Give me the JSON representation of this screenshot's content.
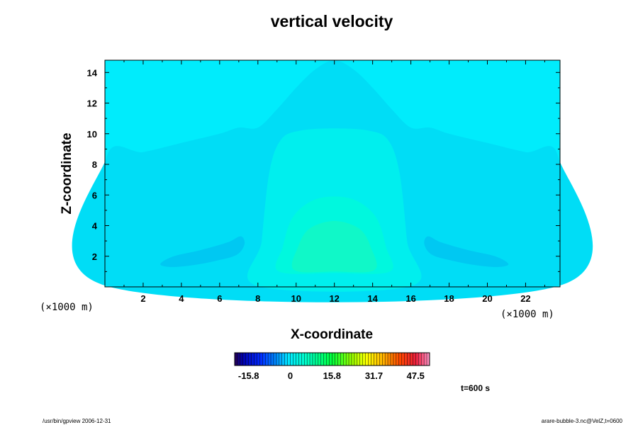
{
  "chart_data": {
    "type": "heatmap",
    "title": "vertical velocity",
    "xlabel": "X-coordinate",
    "ylabel": "Z-coordinate",
    "x_unit": "(×1000 m)",
    "y_unit": "(×1000 m)",
    "xlim": [
      0,
      23.8
    ],
    "ylim": [
      0,
      14.8
    ],
    "x_ticks": [
      2,
      4,
      6,
      8,
      10,
      12,
      14,
      16,
      18,
      20,
      22
    ],
    "y_ticks": [
      2,
      4,
      6,
      8,
      10,
      12,
      14
    ],
    "field": {
      "background_level": 0,
      "regions": [
        {
          "name": "upper-weak-positive",
          "level": 1,
          "color": "#00ddf6",
          "outline": [
            [
              0.1,
              8.5
            ],
            [
              2,
              8.8
            ],
            [
              4,
              9.4
            ],
            [
              6,
              10
            ],
            [
              7,
              10.4
            ],
            [
              8,
              10.4
            ],
            [
              9,
              11.6
            ],
            [
              10,
              13
            ],
            [
              11,
              14.2
            ],
            [
              12,
              14.8
            ],
            [
              13,
              14.2
            ],
            [
              14,
              13
            ],
            [
              15,
              11.6
            ],
            [
              16,
              10.4
            ],
            [
              17,
              10.4
            ],
            [
              18,
              10
            ],
            [
              20,
              9.4
            ],
            [
              22,
              8.8
            ],
            [
              23.7,
              8.5
            ],
            [
              23.7,
              0.05
            ],
            [
              0.1,
              0.05
            ]
          ]
        },
        {
          "name": "core-outer",
          "level": 2,
          "color": "#00efee",
          "outline": [
            [
              8.0,
              0.05
            ],
            [
              8.2,
              3
            ],
            [
              8.6,
              7.5
            ],
            [
              9.2,
              9.6
            ],
            [
              10.2,
              10.2
            ],
            [
              12,
              10.35
            ],
            [
              13.8,
              10.2
            ],
            [
              14.8,
              9.6
            ],
            [
              15.4,
              7.5
            ],
            [
              15.8,
              3
            ],
            [
              16,
              0.05
            ]
          ]
        },
        {
          "name": "core-mid",
          "level": 3,
          "color": "#00f8de",
          "outline": [
            [
              9.1,
              1.0
            ],
            [
              9.3,
              2.6
            ],
            [
              9.8,
              4.5
            ],
            [
              10.8,
              5.6
            ],
            [
              12,
              5.9
            ],
            [
              13.2,
              5.6
            ],
            [
              14.2,
              4.5
            ],
            [
              14.7,
              2.6
            ],
            [
              14.9,
              1.0
            ],
            [
              12,
              0.9
            ]
          ]
        },
        {
          "name": "core-inner",
          "level": 4,
          "color": "#10f8c8",
          "outline": [
            [
              9.9,
              1.1
            ],
            [
              10.1,
              2.6
            ],
            [
              10.7,
              3.8
            ],
            [
              12,
              4.3
            ],
            [
              13.3,
              3.8
            ],
            [
              13.9,
              2.6
            ],
            [
              14.1,
              1.1
            ],
            [
              12,
              1.0
            ]
          ]
        },
        {
          "name": "lobe-left",
          "level": -1,
          "color": "#00c8f2",
          "outline": [
            [
              2.9,
              1.5
            ],
            [
              3.6,
              2.0
            ],
            [
              5.0,
              2.4
            ],
            [
              6.4,
              2.9
            ],
            [
              7.1,
              3.3
            ],
            [
              7.3,
              2.8
            ],
            [
              6.9,
              2.1
            ],
            [
              5.8,
              1.7
            ],
            [
              4.5,
              1.4
            ],
            [
              3.4,
              1.3
            ]
          ]
        },
        {
          "name": "lobe-right",
          "level": -1,
          "color": "#00c8f2",
          "outline": [
            [
              21.1,
              1.5
            ],
            [
              20.4,
              2.0
            ],
            [
              19,
              2.4
            ],
            [
              17.6,
              2.9
            ],
            [
              16.9,
              3.3
            ],
            [
              16.7,
              2.8
            ],
            [
              17.1,
              2.1
            ],
            [
              18.2,
              1.7
            ],
            [
              19.5,
              1.4
            ],
            [
              20.6,
              1.3
            ]
          ]
        }
      ],
      "colors": {
        "background": "#00ecfc",
        "level-1": "#00ddf6"
      }
    },
    "colorbar": {
      "range": [
        -21.1,
        52.8
      ],
      "ticks": [
        -15.8,
        0,
        15.8,
        31.7,
        47.5
      ]
    },
    "time_label": "t=600 s"
  },
  "footer": {
    "left": "/usr/bin/gpview 2006-12-31",
    "right": "arare-bubble-3.nc@VelZ,t=0600"
  }
}
